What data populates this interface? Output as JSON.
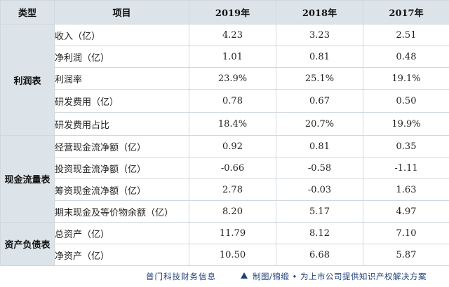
{
  "header": {
    "type": "类型",
    "item": "项目",
    "y2019": "2019年",
    "y2018": "2018年",
    "y2017": "2017年"
  },
  "groups": [
    {
      "category": "利润表",
      "rows": [
        {
          "label": "收入（亿）",
          "v2019": "4.23",
          "v2018": "3.23",
          "v2017": "2.51"
        },
        {
          "label": "净利润（亿）",
          "v2019": "1.01",
          "v2018": "0.81",
          "v2017": "0.48"
        },
        {
          "label": "利润率",
          "v2019": "23.9%",
          "v2018": "25.1%",
          "v2017": "19.1%"
        },
        {
          "label": "研发费用（亿）",
          "v2019": "0.78",
          "v2018": "0.67",
          "v2017": "0.50"
        },
        {
          "label": "研发费用占比",
          "v2019": "18.4%",
          "v2018": "20.7%",
          "v2017": "19.9%"
        }
      ]
    },
    {
      "category": "现金流量表",
      "rows": [
        {
          "label": "经营现金流净额（亿）",
          "v2019": "0.92",
          "v2018": "0.81",
          "v2017": "0.35"
        },
        {
          "label": "投资现金流净额（亿）",
          "v2019": "-0.66",
          "v2018": "-0.58",
          "v2017": "-1.11"
        },
        {
          "label": "筹资现金流净额（亿）",
          "v2019": "2.78",
          "v2018": "-0.03",
          "v2017": "1.63"
        },
        {
          "label": "期末现金及等价物余额（亿）",
          "v2019": "8.20",
          "v2018": "5.17",
          "v2017": "4.97"
        }
      ]
    },
    {
      "category": "资产负债表",
      "rows": [
        {
          "label": "总资产（亿）",
          "v2019": "11.79",
          "v2018": "8.12",
          "v2017": "7.10"
        },
        {
          "label": "净资产（亿）",
          "v2019": "10.50",
          "v2018": "6.68",
          "v2017": "5.87"
        }
      ]
    }
  ],
  "footer": {
    "brand": "普门科技财务信息",
    "credit": "制图/锦缎 • 为上市公司提供知识产权解决方案"
  },
  "colors": {
    "header_bg": "#dce4e9",
    "border": "#d0d8de",
    "footer_text": "#1f3f7a"
  }
}
